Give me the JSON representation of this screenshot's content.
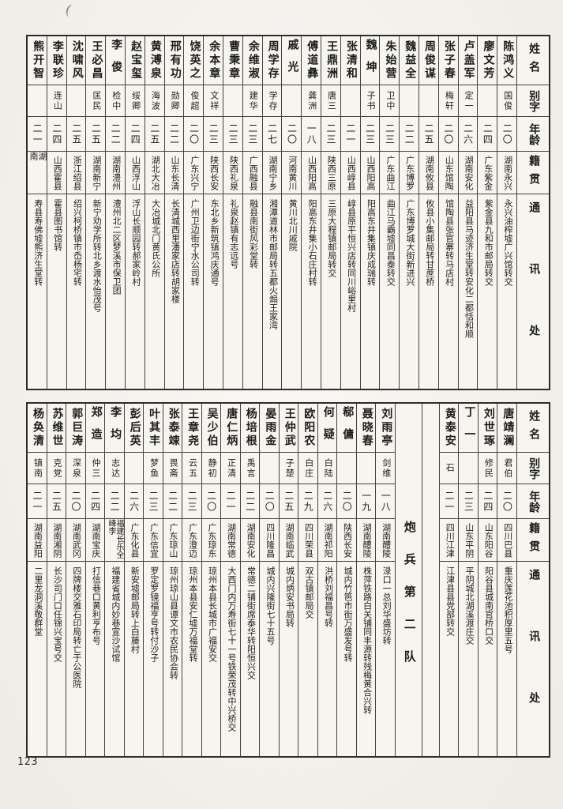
{
  "page": {
    "number": "123"
  },
  "headers": {
    "name": "姓名",
    "zi": "别字",
    "age": "年龄",
    "native": "籍贯",
    "address": "通讯处"
  },
  "section_label": "炮兵第二队",
  "table_top": {
    "entries": [
      {
        "name": "陈鸿义",
        "zi": "国俊",
        "age": "二〇",
        "native": "湖南永兴",
        "address": "永兴油榨墟广兴馆转交"
      },
      {
        "name": "廖文芳",
        "zi": "",
        "age": "二四",
        "native": "广东紫金",
        "address": "紫金县九和市邮局转交"
      },
      {
        "name": "卢盖军",
        "zi": "定一",
        "age": "二六",
        "native": "湖南安化",
        "address": "益阳县马迹济生堂转安化二都恬和顺"
      },
      {
        "name": "张子春",
        "zi": "梅轩",
        "age": "二〇",
        "native": "山东馆陶",
        "address": "馆陶县张官寨转马店村"
      },
      {
        "name": "周俊谋",
        "zi": "",
        "age": "二五",
        "native": "湖南攸县",
        "address": "攸县小集邮局转甘蔗桥"
      },
      {
        "name": "魏益全",
        "zi": "",
        "age": "二二",
        "native": "广东博罗",
        "address": "广东博罗城大街新进兴"
      },
      {
        "name": "朱始营",
        "zi": "卫中",
        "age": "二三",
        "native": "广东曲江",
        "address": "曲江马霸墟同昌泰转交"
      },
      {
        "name": "魏坤",
        "zi": "子书",
        "age": "二三",
        "native": "山西阳高",
        "address": "阳高东井集镇庆成瑞转"
      },
      {
        "name": "张清和",
        "zi": "",
        "age": "二一",
        "native": "山西崞县",
        "address": "崞县原平恒兴店转同川峪里村"
      },
      {
        "name": "王鼎洲",
        "zi": "唐三",
        "age": "二三",
        "native": "陕西三原",
        "address": "三原大程镇邮局转交"
      },
      {
        "name": "傅道彝",
        "zi": "龚洲",
        "age": "一八",
        "native": "山西阳高",
        "address": "阳高东井集小石庄村转"
      },
      {
        "name": "戚光",
        "zi": "",
        "age": "二〇",
        "native": "河南黄川",
        "address": "黄川北川戚院"
      },
      {
        "name": "周学存",
        "zi": "学存",
        "age": "二七",
        "native": "湖南宁乡",
        "address": "湘潭道林市邮局转五都火煽王家湾"
      },
      {
        "name": "余维淑",
        "zi": "建华",
        "age": "二三",
        "native": "广西融县",
        "address": "融县南街风彩堂转"
      },
      {
        "name": "曹秉章",
        "zi": "",
        "age": "二三",
        "native": "陕西礼泉",
        "address": "礼泉赵镇有志远号"
      },
      {
        "name": "余本章",
        "zi": "文祥",
        "age": "二三",
        "native": "陕西长安",
        "address": "东北乡新筑镇鸿庆通号"
      },
      {
        "name": "饶英之",
        "zi": "俊超",
        "age": "二〇",
        "native": "广东兴宁",
        "address": "广州卫边街宁水公司转"
      },
      {
        "name": "邢有功",
        "zi": "勋卿",
        "age": "二二",
        "native": "山东长清",
        "address": "长清城西里潘家店转胡家楼"
      },
      {
        "name": "黄溥泉",
        "zi": "海波",
        "age": "二五",
        "native": "湖北大冶",
        "address": "大冶城北门黄氏公所"
      },
      {
        "name": "赵宝玺",
        "zi": "绥卿",
        "age": "二四",
        "native": "山西浮山",
        "address": "浮山长顺园转郝家岭村"
      },
      {
        "name": "李俊",
        "zi": "检中",
        "age": "二二",
        "native": "湖南澧州",
        "address": "澧州北二区梦溪市保卫团"
      },
      {
        "name": "王必昌",
        "zi": "匡民",
        "age": "二五",
        "native": "湖南新宁",
        "address": "新宁劝学所转北乡渡水怡茂号"
      },
      {
        "name": "沈啸风",
        "zi": "",
        "age": "二五",
        "native": "浙江绍县",
        "address": "绍兴柯桥镇市岙杨宅转"
      },
      {
        "name": "李联珍",
        "zi": "连山",
        "age": "二四",
        "native": "山西霍县",
        "address": "霍县图书馆转"
      },
      {
        "name": "熊开智",
        "zi": "",
        "age": "二一",
        "native": "湖南",
        "address": "寿县寿佛墟熊济生堂转"
      }
    ]
  },
  "table_bottom": {
    "right_entries": [
      {
        "name": "唐靖澜",
        "zi": "君伯",
        "age": "二〇",
        "native": "四川巴县",
        "address": "重庆莲花池积厚里五号"
      },
      {
        "name": "刘世琢",
        "zi": "修民",
        "age": "二四",
        "native": "山东阳谷",
        "address": "阳谷县城南官桥口交"
      },
      {
        "name": "丁一",
        "zi": "",
        "age": "二三",
        "native": "山东平阴",
        "address": "平阴城北湖溪渡庄交"
      },
      {
        "name": "黄泰安",
        "zi": "石",
        "age": "二一",
        "native": "四川江津",
        "address": "江津县县党部转交"
      }
    ],
    "left_entries": [
      {
        "name": "刘雨亭",
        "zi": "剑维",
        "age": "一八",
        "native": "湖南醴陵",
        "address": "渌口一总刘华盛坊转"
      },
      {
        "name": "聂晓春",
        "zi": "",
        "age": "一九",
        "native": "湖南醴陵",
        "address": "株萍铁路白关铺同丰源转残梅黄合兴转"
      },
      {
        "name": "郗傭",
        "zi": "",
        "age": "二〇",
        "native": "陕西长安",
        "address": "城内竹笆市街万盛发号转"
      },
      {
        "name": "何疑",
        "zi": "白陆",
        "age": "二六",
        "native": "湖南祁阳",
        "address": "洪桥刘福昌号转"
      },
      {
        "name": "欧阳农",
        "zi": "白庄",
        "age": "二九",
        "native": "四川荣县",
        "address": "双古镇邮局交"
      },
      {
        "name": "王仲武",
        "zi": "子楚",
        "age": "二五",
        "native": "湖南临武",
        "address": "城内炳安书局转"
      },
      {
        "name": "晏雨金",
        "zi": "",
        "age": "二〇",
        "native": "四川隆昌",
        "address": "城内兴隆街七十五号"
      },
      {
        "name": "杨培根",
        "zi": "禹言",
        "age": "二二",
        "native": "湖南安化",
        "address": "常德二铺街席泰华转阳恒兴交"
      },
      {
        "name": "唐仁炳",
        "zi": "正清",
        "age": "二一",
        "native": "湖南常德",
        "address": "大西门内万寿街七十一号铁荣茂转中兴桥交"
      },
      {
        "name": "吴少伯",
        "zi": "静初",
        "age": "二〇",
        "native": "广东琼东",
        "address": "琼州本县长城市广福安交"
      },
      {
        "name": "王章尧",
        "zi": "云五",
        "age": "二三",
        "native": "广东澄迈",
        "address": "琼州本县安仁墟万福堂转"
      },
      {
        "name": "张泰竦",
        "zi": "畏斋",
        "age": "二二",
        "native": "广东琼山",
        "address": "琼州琼山县谭文市农民协会转"
      },
      {
        "name": "叶其丰",
        "zi": "梦鱼",
        "age": "二三",
        "native": "广东信宜",
        "address": "罗定罗镜福亨号转付沙子"
      },
      {
        "name": "彭后英",
        "zi": "",
        "age": "二六",
        "native": "广东化县",
        "address": "新安墟邮局转上白藤村"
      },
      {
        "name": "李均",
        "zi": "志达",
        "age": "二二",
        "native": "福建长乐全峰李",
        "address": "福建省城内妙巷宣沙试馆"
      },
      {
        "name": "郑造",
        "zi": "仲三",
        "age": "二四",
        "native": "湖南宝庆",
        "address": "打信巷口黄利亨布号"
      },
      {
        "name": "郭巨涛",
        "zi": "深泉",
        "age": "二〇",
        "native": "湖南武冈",
        "address": "四牌楼交雅石印局转亡于公医院"
      },
      {
        "name": "苏维世",
        "zi": "克党",
        "age": "二五",
        "native": "湖南湘阴",
        "address": "长沙司门口任锦兴宝号交"
      },
      {
        "name": "杨奂清",
        "zi": "镇南",
        "age": "二一",
        "native": "湖南益阳",
        "address": "二里龙洞溪敬群堂"
      }
    ]
  }
}
